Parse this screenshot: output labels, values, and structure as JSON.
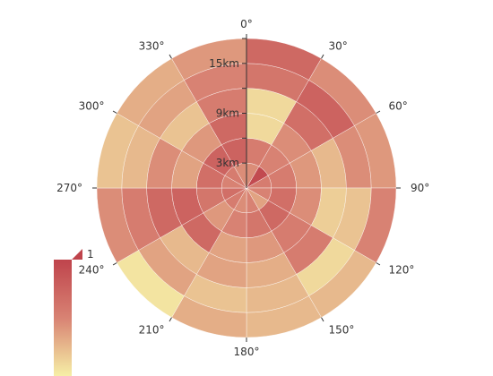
{
  "chart_data": {
    "type": "heatmap",
    "subtype": "polar",
    "angle_labels": [
      "0°",
      "30°",
      "60°",
      "90°",
      "120°",
      "150°",
      "180°",
      "210°",
      "240°",
      "270°",
      "300°",
      "330°"
    ],
    "radius_labels": [
      "3km",
      "9km",
      "15km"
    ],
    "visual_map": {
      "max_label": "1",
      "colors": [
        "#f6efa6",
        "#d88273",
        "#bf444c"
      ]
    },
    "sectors": 12,
    "rings": 6,
    "values": [
      [
        0.45,
        0.95,
        0.55,
        0.5,
        0.35,
        0.5,
        0.45,
        0.55,
        0.65,
        0.5,
        0.55,
        0.45
      ],
      [
        0.55,
        0.5,
        0.55,
        0.65,
        0.7,
        0.6,
        0.5,
        0.4,
        0.6,
        0.65,
        0.75,
        0.75
      ],
      [
        0.1,
        0.45,
        0.4,
        0.45,
        0.55,
        0.4,
        0.35,
        0.7,
        0.75,
        0.35,
        0.4,
        0.7
      ],
      [
        0.1,
        0.65,
        0.25,
        0.15,
        0.55,
        0.3,
        0.35,
        0.25,
        0.7,
        0.45,
        0.2,
        0.55
      ],
      [
        0.6,
        0.75,
        0.45,
        0.2,
        0.1,
        0.25,
        0.2,
        0.35,
        0.55,
        0.25,
        0.35,
        0.5
      ],
      [
        0.7,
        0.45,
        0.4,
        0.5,
        0.25,
        0.25,
        0.3,
        0.05,
        0.45,
        0.2,
        0.3,
        0.4
      ]
    ]
  }
}
